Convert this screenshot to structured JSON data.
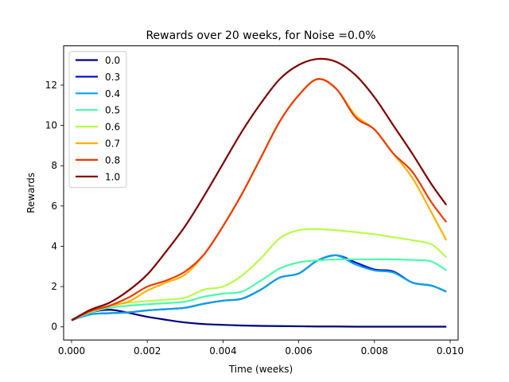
{
  "chart_data": {
    "type": "line",
    "title": "Rewards over 20 weeks, for Noise =0.0%",
    "xlabel": "Time (weeks)",
    "ylabel": "Rewards",
    "xlim": [
      -0.00021,
      0.01021
    ],
    "ylim": [
      -0.65,
      13.95
    ],
    "xticks": [
      0.0,
      0.002,
      0.004,
      0.006,
      0.008,
      0.01
    ],
    "xtick_labels": [
      "0.000",
      "0.002",
      "0.004",
      "0.006",
      "0.008",
      "0.010"
    ],
    "yticks": [
      0,
      2,
      4,
      6,
      8,
      10,
      12
    ],
    "ytick_labels": [
      "0",
      "2",
      "4",
      "6",
      "8",
      "10",
      "12"
    ],
    "legend_position": "upper-left",
    "grid": false,
    "x": [
      0.0,
      0.0005,
      0.001,
      0.0015,
      0.002,
      0.0025,
      0.003,
      0.0035,
      0.004,
      0.0045,
      0.005,
      0.0055,
      0.006,
      0.0065,
      0.007,
      0.0075,
      0.008,
      0.0085,
      0.009,
      0.0095,
      0.0099
    ],
    "series": [
      {
        "name": "0.0",
        "color": "#00007f",
        "values": [
          0.33,
          0.72,
          0.85,
          0.7,
          0.5,
          0.35,
          0.22,
          0.14,
          0.1,
          0.07,
          0.05,
          0.04,
          0.03,
          0.02,
          0.02,
          0.01,
          0.01,
          0.01,
          0.01,
          0.01,
          0.01
        ]
      },
      {
        "name": "0.3",
        "color": "#0010d9",
        "values": [
          0.33,
          0.62,
          0.68,
          0.72,
          0.82,
          0.88,
          0.95,
          1.15,
          1.3,
          1.4,
          1.85,
          2.45,
          2.65,
          3.3,
          3.55,
          3.2,
          2.85,
          2.75,
          2.2,
          2.05,
          1.75
        ]
      },
      {
        "name": "0.4",
        "color": "#0ca0e6",
        "values": [
          0.33,
          0.62,
          0.68,
          0.72,
          0.82,
          0.88,
          0.95,
          1.15,
          1.3,
          1.4,
          1.85,
          2.45,
          2.65,
          3.3,
          3.55,
          3.1,
          2.8,
          2.7,
          2.2,
          2.05,
          1.75
        ]
      },
      {
        "name": "0.5",
        "color": "#49fbad",
        "values": [
          0.33,
          0.72,
          0.95,
          1.05,
          1.12,
          1.18,
          1.25,
          1.5,
          1.65,
          1.75,
          2.3,
          2.9,
          3.2,
          3.3,
          3.35,
          3.35,
          3.35,
          3.35,
          3.32,
          3.25,
          2.8
        ]
      },
      {
        "name": "0.6",
        "color": "#b9fb49",
        "values": [
          0.33,
          0.75,
          1.05,
          1.2,
          1.28,
          1.35,
          1.45,
          1.85,
          2.0,
          2.55,
          3.4,
          4.4,
          4.8,
          4.85,
          4.8,
          4.7,
          4.6,
          4.45,
          4.3,
          4.1,
          3.45
        ]
      },
      {
        "name": "0.7",
        "color": "#ffb000",
        "values": [
          0.33,
          0.78,
          1.05,
          1.25,
          1.8,
          2.2,
          2.6,
          3.6,
          5.0,
          6.6,
          8.4,
          10.2,
          11.5,
          12.3,
          11.8,
          10.5,
          9.8,
          8.6,
          7.4,
          5.7,
          4.3
        ]
      },
      {
        "name": "0.8",
        "color": "#ec3b00",
        "values": [
          0.33,
          0.78,
          1.05,
          1.45,
          2.0,
          2.3,
          2.75,
          3.6,
          5.0,
          6.6,
          8.4,
          10.2,
          11.5,
          12.3,
          11.8,
          10.4,
          9.8,
          8.6,
          7.7,
          6.2,
          5.2
        ]
      },
      {
        "name": "1.0",
        "color": "#7f0000",
        "values": [
          0.33,
          0.85,
          1.2,
          1.8,
          2.6,
          3.75,
          5.0,
          6.5,
          8.1,
          9.7,
          11.1,
          12.3,
          13.0,
          13.3,
          13.15,
          12.5,
          11.4,
          10.0,
          8.6,
          7.1,
          6.05
        ]
      }
    ]
  }
}
